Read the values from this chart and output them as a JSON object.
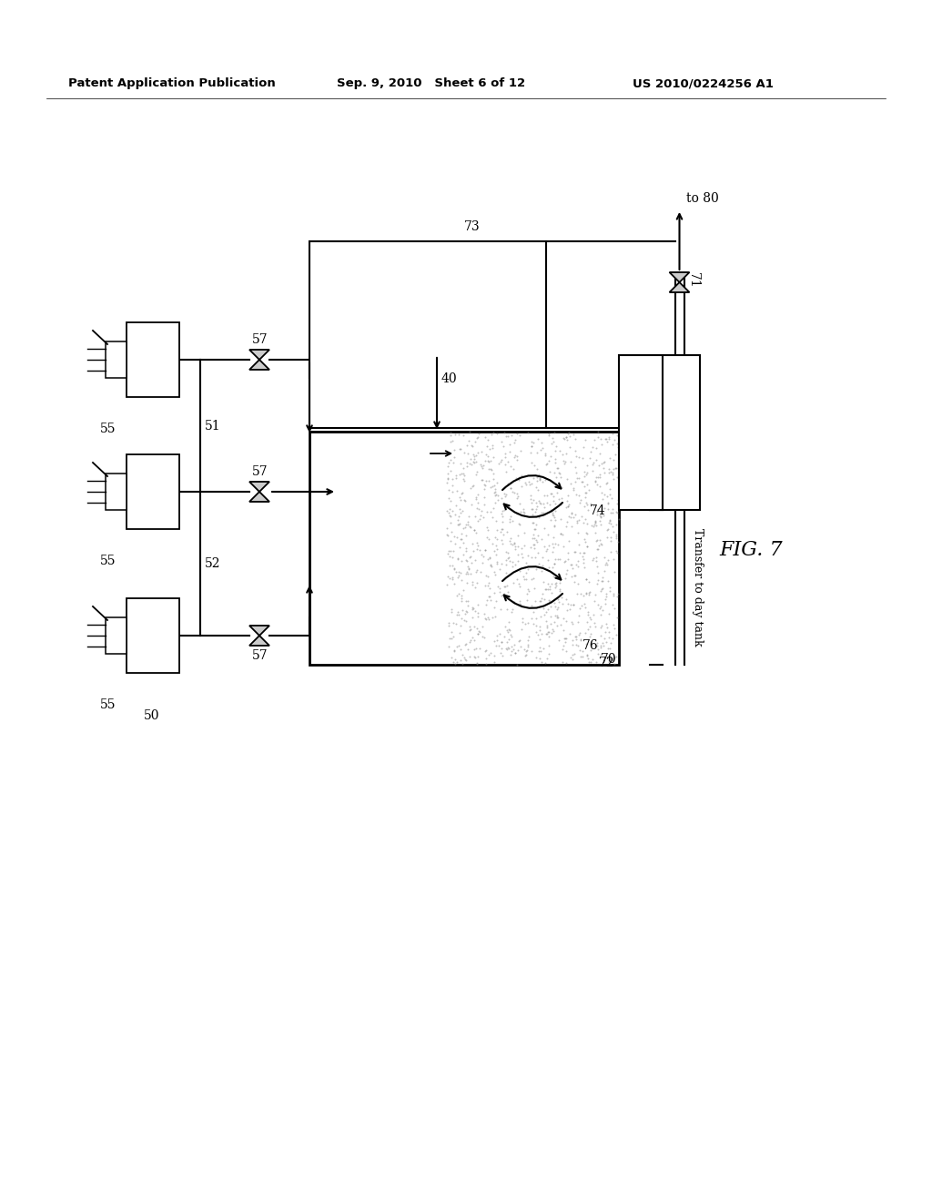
{
  "bg_color": "#ffffff",
  "header_left": "Patent Application Publication",
  "header_mid": "Sep. 9, 2010   Sheet 6 of 12",
  "header_right": "US 2010/0224256 A1",
  "fig_label": "FIG. 7"
}
